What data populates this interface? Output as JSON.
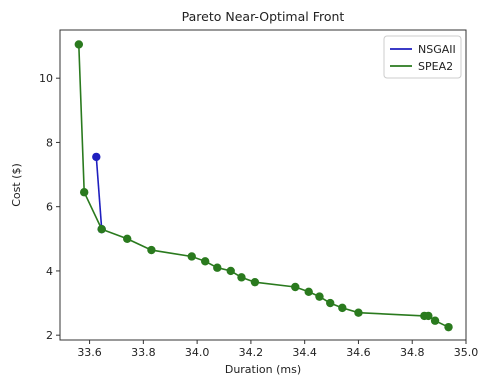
{
  "chart_data": {
    "type": "line",
    "title": "Pareto Near-Optimal Front",
    "xlabel": "Duration (ms)",
    "ylabel": "Cost ($)",
    "xlim": [
      33.49,
      35.0
    ],
    "ylim": [
      1.85,
      11.5
    ],
    "xticks": [
      "33.6",
      "33.8",
      "34.0",
      "34.2",
      "34.4",
      "34.6",
      "34.8",
      "35.0"
    ],
    "xtick_values": [
      33.6,
      33.8,
      34.0,
      34.2,
      34.4,
      34.6,
      34.8,
      35.0
    ],
    "yticks": [
      "2",
      "4",
      "6",
      "8",
      "10"
    ],
    "ytick_values": [
      2,
      4,
      6,
      8,
      10
    ],
    "grid": false,
    "legend_position": "top-right",
    "series": [
      {
        "name": "NSGAII",
        "color": "#1f1fbf",
        "marker": "circle",
        "x": [
          33.625,
          33.645
        ],
        "y": [
          7.55,
          5.3
        ]
      },
      {
        "name": "SPEA2",
        "color": "#2a7a1e",
        "marker": "circle",
        "x": [
          33.56,
          33.58,
          33.645,
          33.74,
          33.83,
          33.98,
          34.03,
          34.075,
          34.125,
          34.165,
          34.215,
          34.365,
          34.415,
          34.455,
          34.495,
          34.54,
          34.6,
          34.845,
          34.86,
          34.885,
          34.935
        ],
        "y": [
          11.05,
          6.45,
          5.3,
          5.0,
          4.65,
          4.45,
          4.3,
          4.1,
          4.0,
          3.8,
          3.65,
          3.5,
          3.35,
          3.2,
          3.0,
          2.85,
          2.7,
          2.6,
          2.6,
          2.45,
          2.25
        ]
      }
    ]
  }
}
